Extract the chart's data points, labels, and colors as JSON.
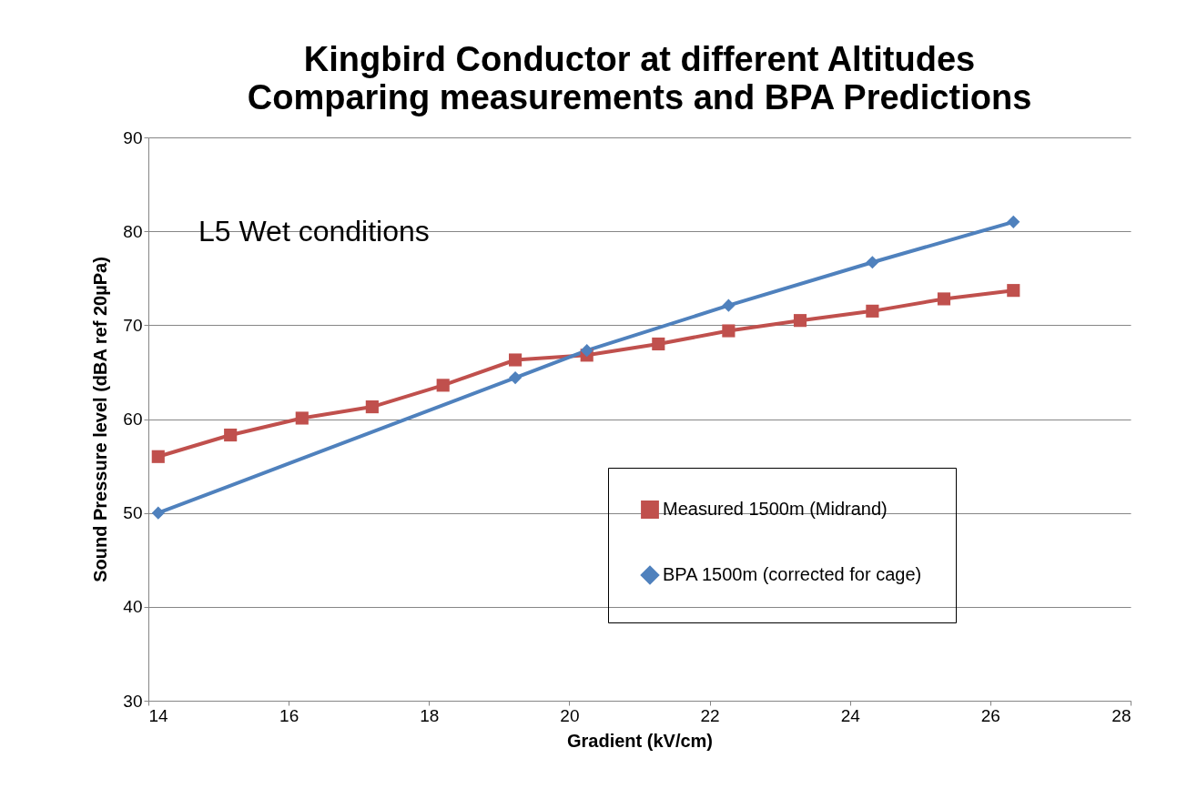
{
  "chart_data": {
    "type": "line",
    "title": "Kingbird Conductor at different Altitudes",
    "subtitle": "Comparing measurements and BPA Predictions",
    "xlabel": "Gradient (kV/cm)",
    "ylabel": "Sound Pressure level (dBA ref 20µPa)",
    "xlim": [
      14,
      28
    ],
    "xticks": [
      14,
      16,
      18,
      20,
      22,
      24,
      26,
      28
    ],
    "ylim": [
      30,
      90
    ],
    "yticks": [
      30,
      40,
      50,
      60,
      70,
      80,
      90
    ],
    "grid": "y",
    "legend": "bottom right",
    "line_style": "solid",
    "annotations": [
      "L5 Wet conditions"
    ],
    "series": [
      {
        "name": "Measured 1500m (Midrand)",
        "color": "#c0504d",
        "marker": "square",
        "x": [
          14.14,
          15.17,
          16.19,
          17.19,
          18.2,
          19.23,
          20.25,
          21.27,
          22.27,
          23.29,
          24.32,
          25.34,
          26.33
        ],
        "values": [
          56.0,
          58.3,
          60.1,
          61.3,
          63.6,
          66.3,
          66.8,
          68.0,
          69.4,
          70.5,
          71.5,
          72.8,
          73.7
        ]
      },
      {
        "name": "BPA 1500m (corrected for cage)",
        "color": "#4f81bd",
        "marker": "diamond",
        "x": [
          14.14,
          19.23,
          20.25,
          22.27,
          24.32,
          26.33
        ],
        "values": [
          50.0,
          64.4,
          67.3,
          72.1,
          76.7,
          81.0
        ]
      }
    ]
  }
}
